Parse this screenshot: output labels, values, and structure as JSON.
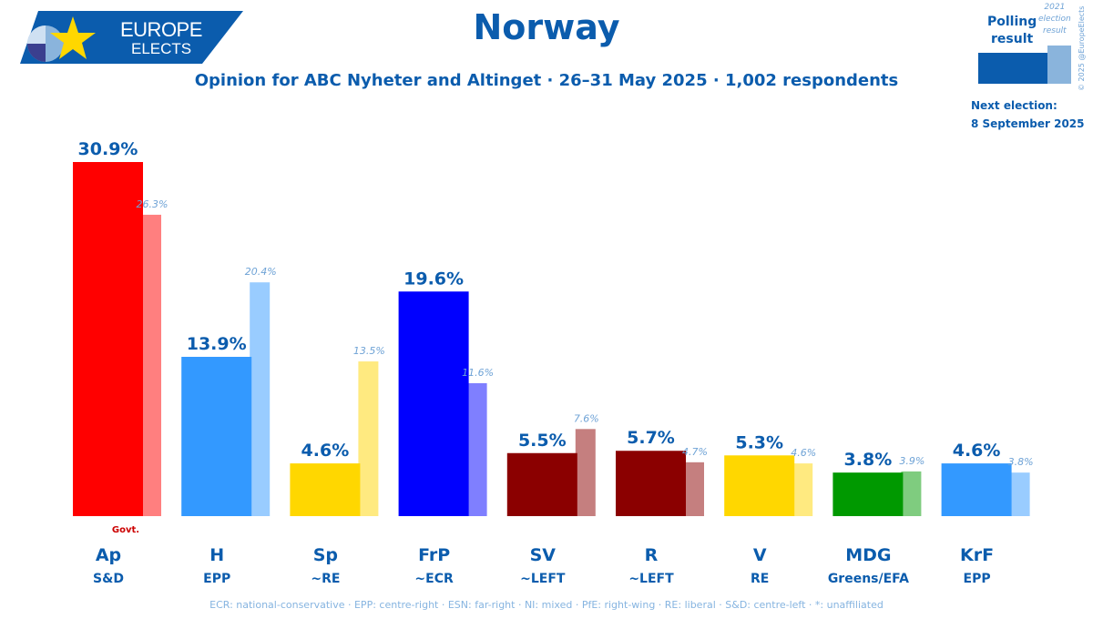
{
  "brand": {
    "line1": "EUROPE",
    "line2": "ELECTS"
  },
  "header": {
    "title": "Norway",
    "subtitle": "Opinion for ABC Nyheter and Altinget · 26–31 May 2025 · 1,002 respondents"
  },
  "legend": {
    "polling_label_1": "Polling",
    "polling_label_2": "result",
    "prev_label_1": "2021",
    "prev_label_2": "election",
    "prev_label_3": "result",
    "copyright": "© 2025 @EuropeElects",
    "next_label": "Next election:",
    "next_date": "8 September 2025",
    "colors": {
      "poll": "#0b5cad",
      "prev": "#8ab4dc"
    }
  },
  "footer": {
    "text": "ECR: national-conservative · EPP: centre-right · ESN: far-right · NI: mixed · PfE: right-wing · RE: liberal · S&D: centre-left · *: unaffiliated"
  },
  "chart_data": {
    "type": "bar",
    "categories": [
      "Ap",
      "H",
      "Sp",
      "FrP",
      "SV",
      "R",
      "V",
      "MDG",
      "KrF"
    ],
    "groups": [
      "S&D",
      "EPP",
      "~RE",
      "~ECR",
      "~LEFT",
      "~LEFT",
      "RE",
      "Greens/EFA",
      "EPP"
    ],
    "series": [
      {
        "name": "Polling result",
        "values": [
          30.9,
          13.9,
          4.6,
          19.6,
          5.5,
          5.7,
          5.3,
          3.8,
          4.6
        ],
        "labels": [
          "30.9%",
          "13.9%",
          "4.6%",
          "19.6%",
          "5.5%",
          "5.7%",
          "5.3%",
          "3.8%",
          "4.6%"
        ],
        "colors": [
          "#ff0000",
          "#3399ff",
          "#ffd700",
          "#0000ff",
          "#8b0000",
          "#8b0000",
          "#ffd700",
          "#009900",
          "#3399ff"
        ]
      },
      {
        "name": "2021 election result",
        "values": [
          26.3,
          20.4,
          13.5,
          11.6,
          7.6,
          4.7,
          4.6,
          3.9,
          3.8
        ],
        "labels": [
          "26.3%",
          "20.4%",
          "13.5%",
          "11.6%",
          "7.6%",
          "4.7%",
          "4.6%",
          "3.9%",
          "3.8%"
        ],
        "colors": [
          "#ff7f7f",
          "#99ccff",
          "#ffea80",
          "#7f7fff",
          "#c57f7f",
          "#c57f7f",
          "#ffea80",
          "#7fcc7f",
          "#99ccff"
        ]
      }
    ],
    "government_marker": {
      "category": "Ap",
      "text": "Govt."
    },
    "ylim": [
      0,
      30.9
    ]
  }
}
